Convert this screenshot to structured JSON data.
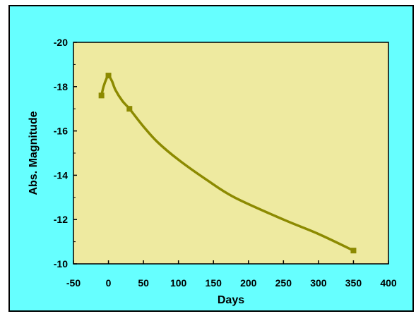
{
  "chart_data": {
    "type": "line",
    "title": "",
    "xlabel": "Days",
    "ylabel": "Abs.  Magnitude",
    "xlim": [
      -50,
      400
    ],
    "ylim": [
      -10,
      -20
    ],
    "y_inverted": true,
    "x_ticks": [
      -50,
      0,
      50,
      100,
      150,
      200,
      250,
      300,
      350,
      400
    ],
    "x_tick_labels": [
      "-50",
      "0",
      "50",
      "100",
      "150",
      "200",
      "250",
      "300",
      "350",
      "400"
    ],
    "y_ticks": [
      -20,
      -18,
      -16,
      -14,
      -12,
      -10
    ],
    "y_tick_labels": [
      "-20",
      "-18",
      "-16",
      "-14",
      "-12",
      "-10"
    ],
    "grid": false,
    "legend": "none",
    "series": [
      {
        "marker": "square",
        "points": [
          {
            "x": -10,
            "y": -17.6
          },
          {
            "x": 0,
            "y": -18.5
          },
          {
            "x": 30,
            "y": -17.0
          },
          {
            "x": 350,
            "y": -10.6
          }
        ],
        "curve": [
          {
            "x": -10,
            "y": -17.6
          },
          {
            "x": -7,
            "y": -18.0
          },
          {
            "x": -3,
            "y": -18.35
          },
          {
            "x": 0,
            "y": -18.5
          },
          {
            "x": 5,
            "y": -18.25
          },
          {
            "x": 10,
            "y": -17.85
          },
          {
            "x": 20,
            "y": -17.35
          },
          {
            "x": 30,
            "y": -17.0
          },
          {
            "x": 50,
            "y": -16.2
          },
          {
            "x": 70,
            "y": -15.5
          },
          {
            "x": 100,
            "y": -14.7
          },
          {
            "x": 140,
            "y": -13.8
          },
          {
            "x": 180,
            "y": -13.0
          },
          {
            "x": 250,
            "y": -12.0
          },
          {
            "x": 300,
            "y": -11.35
          },
          {
            "x": 350,
            "y": -10.6
          }
        ]
      }
    ]
  },
  "colors": {
    "frame_background": "#66ffff",
    "plot_background": "#eeeaa0",
    "series": "#8c8a00",
    "frame_border": "#000000"
  }
}
